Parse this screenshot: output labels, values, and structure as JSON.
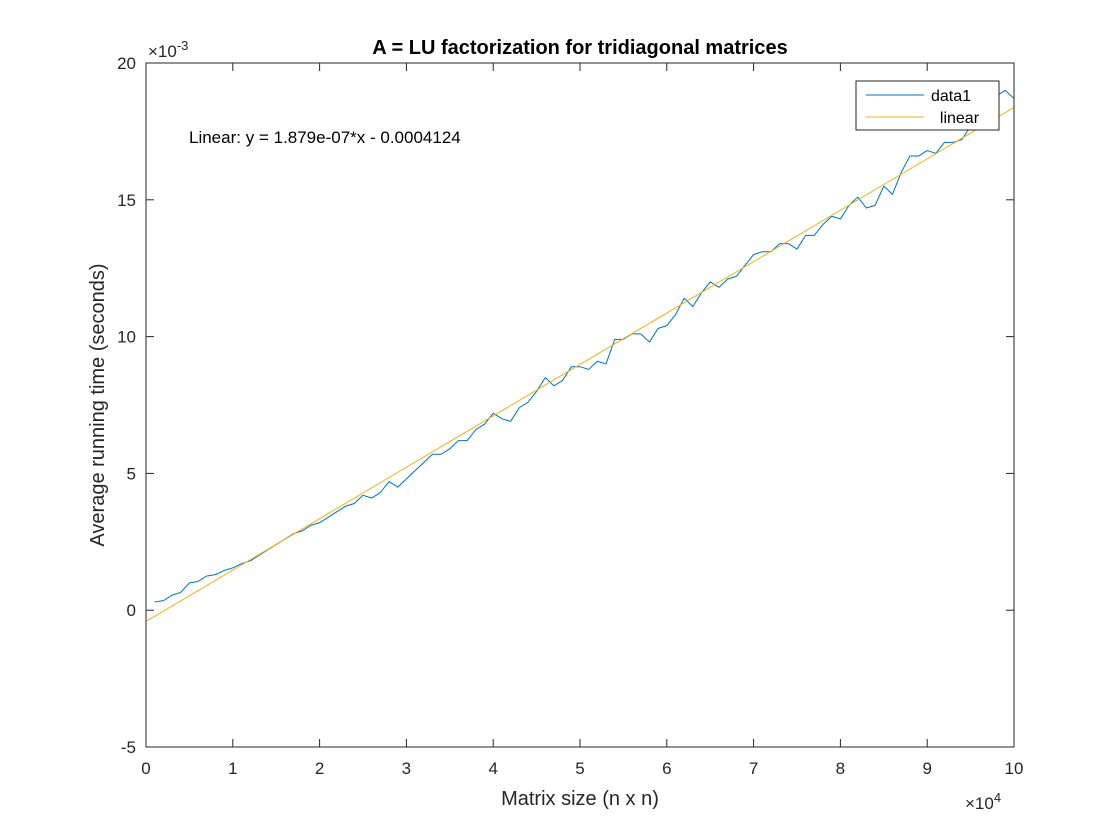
{
  "chart_data": {
    "type": "line",
    "title": "A = LU factorization for tridiagonal matrices",
    "xlabel": "Matrix size (n x n)",
    "ylabel": "Average running time (seconds)",
    "x_exponent_label": "×10",
    "x_exponent_power": "4",
    "y_exponent_label": "×10",
    "y_exponent_power": "-3",
    "xlim": [
      0,
      100000
    ],
    "ylim": [
      -0.005,
      0.02
    ],
    "x_tick_values": [
      0,
      10000,
      20000,
      30000,
      40000,
      50000,
      60000,
      70000,
      80000,
      90000,
      100000
    ],
    "x_tick_labels": [
      "0",
      "1",
      "2",
      "3",
      "4",
      "5",
      "6",
      "7",
      "8",
      "9",
      "10"
    ],
    "y_tick_values": [
      -0.005,
      0,
      0.005,
      0.01,
      0.015,
      0.02
    ],
    "y_tick_labels": [
      "-5",
      "0",
      "5",
      "10",
      "15",
      "20"
    ],
    "grid": false,
    "legend_position": "top-right",
    "annotation": "Linear:  y = 1.879e-07*x - 0.0004124",
    "series": [
      {
        "name": "data1",
        "color": "#0072BD",
        "x": [
          1000,
          2000,
          3000,
          4000,
          5000,
          6000,
          7000,
          8000,
          9000,
          10000,
          11000,
          12000,
          13000,
          14000,
          15000,
          16000,
          17000,
          18000,
          19000,
          20000,
          21000,
          22000,
          23000,
          24000,
          25000,
          26000,
          27000,
          28000,
          29000,
          30000,
          31000,
          32000,
          33000,
          34000,
          35000,
          36000,
          37000,
          38000,
          39000,
          40000,
          41000,
          42000,
          43000,
          44000,
          45000,
          46000,
          47000,
          48000,
          49000,
          50000,
          51000,
          52000,
          53000,
          54000,
          55000,
          56000,
          57000,
          58000,
          59000,
          60000,
          61000,
          62000,
          63000,
          64000,
          65000,
          66000,
          67000,
          68000,
          69000,
          70000,
          71000,
          72000,
          73000,
          74000,
          75000,
          76000,
          77000,
          78000,
          79000,
          80000,
          81000,
          82000,
          83000,
          84000,
          85000,
          86000,
          87000,
          88000,
          89000,
          90000,
          91000,
          92000,
          93000,
          94000,
          95000,
          96000,
          97000,
          98000,
          99000,
          100000
        ],
        "y": [
          0.0003,
          0.00035,
          0.00055,
          0.00065,
          0.001,
          0.00105,
          0.00125,
          0.0013,
          0.00145,
          0.00155,
          0.0017,
          0.0018,
          0.002,
          0.0022,
          0.0024,
          0.0026,
          0.0028,
          0.0029,
          0.0031,
          0.0032,
          0.0034,
          0.0036,
          0.0038,
          0.0039,
          0.0042,
          0.0041,
          0.0043,
          0.0047,
          0.0045,
          0.0048,
          0.0051,
          0.0054,
          0.0057,
          0.0057,
          0.0059,
          0.0062,
          0.0062,
          0.0066,
          0.0068,
          0.0072,
          0.007,
          0.0069,
          0.0074,
          0.0076,
          0.008,
          0.0085,
          0.0082,
          0.0084,
          0.0089,
          0.0089,
          0.0088,
          0.0091,
          0.009,
          0.0099,
          0.0099,
          0.0101,
          0.0101,
          0.0098,
          0.0103,
          0.0104,
          0.0108,
          0.0114,
          0.0111,
          0.0116,
          0.012,
          0.0118,
          0.0121,
          0.0122,
          0.0126,
          0.013,
          0.0131,
          0.0131,
          0.0134,
          0.0134,
          0.0132,
          0.0137,
          0.0137,
          0.0141,
          0.0144,
          0.0143,
          0.0148,
          0.0151,
          0.0147,
          0.0148,
          0.0155,
          0.0152,
          0.016,
          0.0166,
          0.0166,
          0.0168,
          0.0167,
          0.0171,
          0.0171,
          0.0172,
          0.0177,
          0.0178,
          0.0183,
          0.0188,
          0.019,
          0.0187
        ]
      },
      {
        "name": "  linear",
        "color": "#EDB120",
        "x": [
          0,
          100000
        ],
        "y": [
          -0.0004124,
          0.0183776
        ]
      }
    ]
  }
}
